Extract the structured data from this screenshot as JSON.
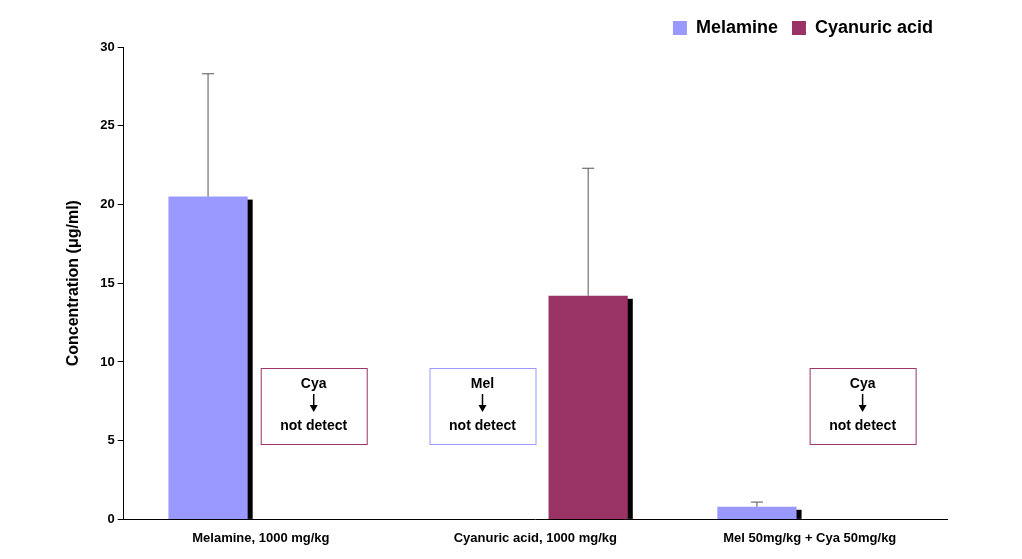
{
  "chart_data": {
    "type": "bar",
    "categories": [
      "Melamine, 1000 mg/kg",
      "Cyanuric acid, 1000 mg/kg",
      "Mel 50mg/kg + Cya 50mg/kg"
    ],
    "series": [
      {
        "name": "Melamine",
        "color": "#9999ff",
        "values": [
          20.5,
          null,
          0.8
        ],
        "errors": [
          7.8,
          null,
          0.3
        ]
      },
      {
        "name": "Cyanuric acid",
        "color": "#993366",
        "values": [
          null,
          14.2,
          null
        ],
        "errors": [
          null,
          8.1,
          null
        ]
      }
    ],
    "y_label": "Concentration (μg/ml)",
    "ylim": [
      0,
      30
    ],
    "yticks": [
      0,
      5,
      10,
      15,
      20,
      25,
      30
    ],
    "grid": false,
    "legend": "upper right",
    "annotations": [
      {
        "lines": [
          "Cya",
          "not detect"
        ],
        "category": "Melamine, 1000 mg/kg",
        "series": "Cyanuric acid"
      },
      {
        "lines": [
          "Mel",
          "not detect"
        ],
        "category": "Cyanuric acid, 1000 mg/kg",
        "series": "Melamine"
      },
      {
        "lines": [
          "Cya",
          "not detect"
        ],
        "category": "Mel 50mg/kg + Cya 50mg/kg",
        "series": "Cyanuric acid"
      }
    ]
  }
}
